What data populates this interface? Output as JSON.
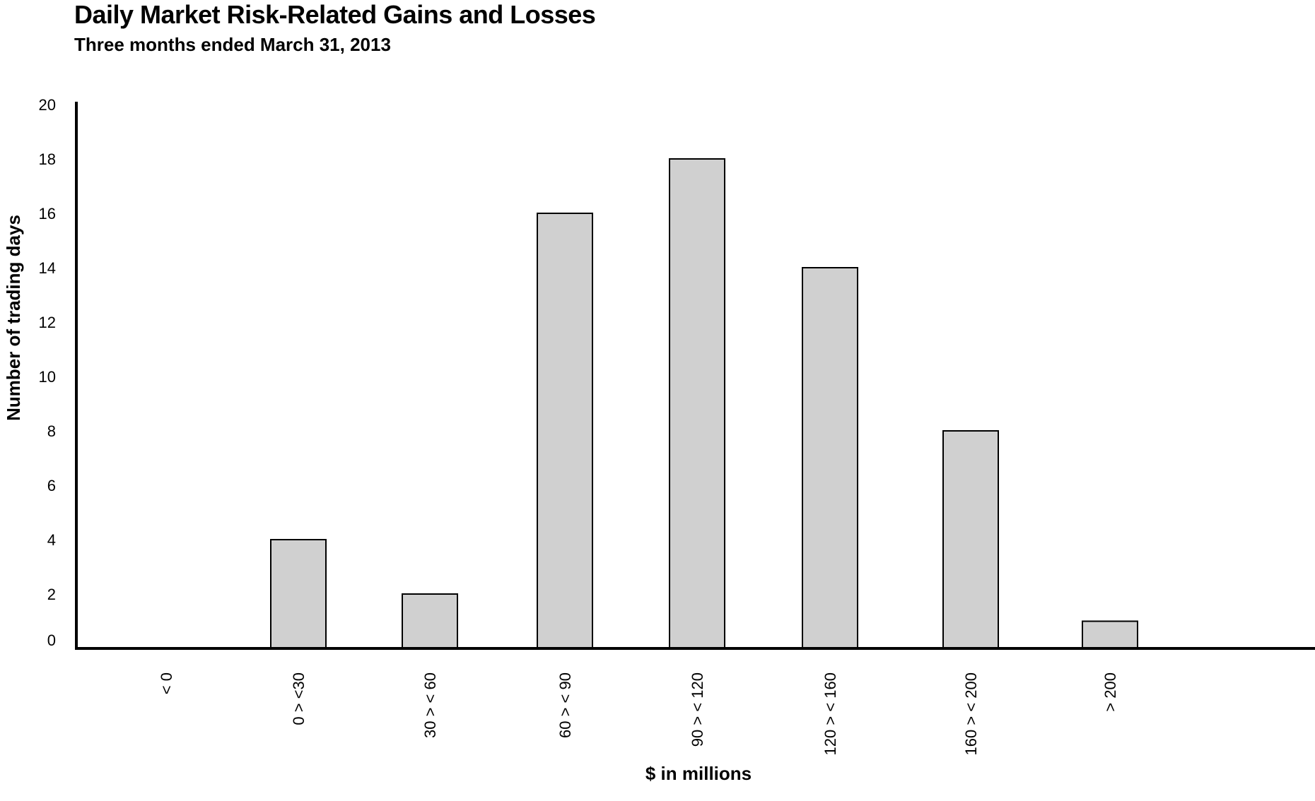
{
  "chart_data": {
    "type": "bar",
    "title": "Daily Market Risk-Related Gains and Losses",
    "subtitle": "Three months ended March 31, 2013",
    "xlabel": "$ in millions",
    "ylabel": "Number of trading days",
    "categories": [
      "< 0",
      "0 > <30",
      "30 > < 60",
      "60 > < 90",
      "90 > < 120",
      "120 > < 160",
      "160 > < 200",
      "> 200"
    ],
    "values": [
      0,
      4,
      2,
      16,
      18,
      14,
      8,
      1
    ],
    "ylim": [
      0,
      20
    ],
    "yticks": [
      0,
      2,
      4,
      6,
      8,
      10,
      12,
      14,
      16,
      18,
      20
    ],
    "grid": false,
    "colors": {
      "bar_fill": "#d0d0d0",
      "bar_stroke": "#000000",
      "axis": "#000000"
    }
  }
}
